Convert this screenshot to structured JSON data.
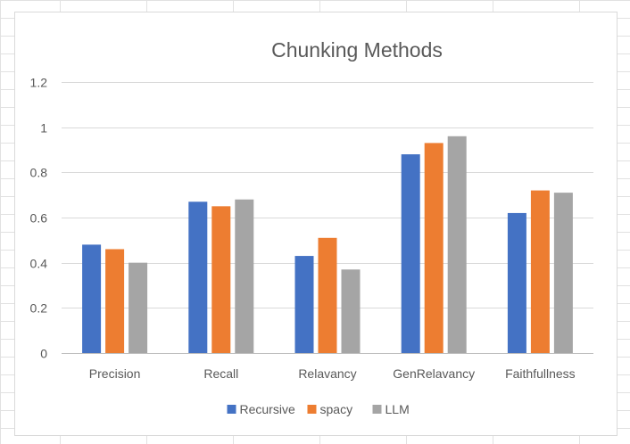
{
  "chart_data": {
    "type": "bar",
    "title": "Chunking Methods",
    "xlabel": "",
    "ylabel": "",
    "categories": [
      "Precision",
      "Recall",
      "Relavancy",
      "GenRelavancy",
      "Faithfullness"
    ],
    "series": [
      {
        "name": "Recursive",
        "color": "#4472c4",
        "values": [
          0.48,
          0.67,
          0.43,
          0.88,
          0.62
        ]
      },
      {
        "name": "spacy",
        "color": "#ed7d31",
        "values": [
          0.46,
          0.65,
          0.51,
          0.93,
          0.72
        ]
      },
      {
        "name": "LLM",
        "color": "#a5a5a5",
        "values": [
          0.4,
          0.68,
          0.37,
          0.96,
          0.71
        ]
      }
    ],
    "ylim": [
      0,
      1.2
    ],
    "yticks": [
      "0",
      "0.2",
      "0.4",
      "0.6",
      "0.8",
      "1",
      "1.2"
    ],
    "ytick_values": [
      0,
      0.2,
      0.4,
      0.6,
      0.8,
      1,
      1.2
    ],
    "grid": true,
    "legend_position": "bottom"
  }
}
